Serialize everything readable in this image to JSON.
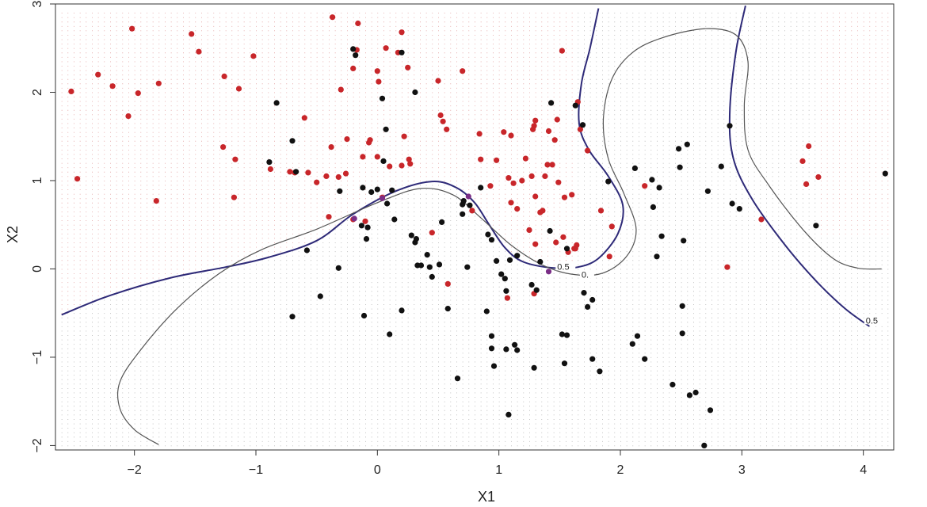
{
  "chart_data": {
    "type": "scatter",
    "title": "",
    "xlabel": "X1",
    "ylabel": "X2",
    "xlim": [
      -2.65,
      4.25
    ],
    "ylim": [
      -2.05,
      3.0
    ],
    "x_ticks": [
      -2,
      -1,
      0,
      1,
      2,
      3,
      4
    ],
    "y_ticks": [
      -2,
      -1,
      0,
      1,
      2,
      3
    ],
    "x_tick_labels": [
      "−2",
      "−1",
      "0",
      "1",
      "2",
      "3",
      "4"
    ],
    "y_tick_labels": [
      "−2",
      "−1",
      "0",
      "1",
      "2",
      "3"
    ],
    "grid": {
      "x_range": [
        -2.6,
        4.2
      ],
      "x_step": 0.05,
      "y_range": [
        -2.0,
        2.9
      ],
      "y_step": 0.05,
      "color": "#b4b4b4",
      "red_color": "#e3a2a2"
    },
    "colors": {
      "red": "#c8262a",
      "black": "#111111",
      "bayes_boundary": "#2e2a78",
      "knn_boundary": "#555555"
    },
    "series": [
      {
        "color": "#c8262a",
        "points": [
          [
            -2.52,
            2.01
          ],
          [
            -2.47,
            1.02
          ],
          [
            -2.3,
            2.2
          ],
          [
            -2.18,
            2.07
          ],
          [
            -2.05,
            1.73
          ],
          [
            -2.02,
            2.72
          ],
          [
            -1.97,
            1.99
          ],
          [
            -1.8,
            2.1
          ],
          [
            -1.82,
            0.77
          ],
          [
            -1.53,
            2.66
          ],
          [
            -1.47,
            2.46
          ],
          [
            -1.26,
            2.18
          ],
          [
            -1.27,
            1.38
          ],
          [
            -1.18,
            0.81
          ],
          [
            -1.17,
            1.24
          ],
          [
            -1.14,
            2.04
          ],
          [
            -1.02,
            2.41
          ],
          [
            -0.88,
            1.13
          ],
          [
            -0.72,
            1.1
          ],
          [
            -0.68,
            1.09
          ],
          [
            -0.6,
            1.71
          ],
          [
            -0.57,
            1.09
          ],
          [
            -0.5,
            0.98
          ],
          [
            -0.42,
            1.05
          ],
          [
            -0.4,
            0.59
          ],
          [
            -0.37,
            2.85
          ],
          [
            -0.38,
            1.38
          ],
          [
            -0.32,
            1.04
          ],
          [
            -0.3,
            2.03
          ],
          [
            -0.25,
            1.47
          ],
          [
            -0.26,
            1.08
          ],
          [
            -0.2,
            2.27
          ],
          [
            -0.2,
            0.56
          ],
          [
            -0.17,
            2.48
          ],
          [
            -0.16,
            2.78
          ],
          [
            -0.12,
            1.27
          ],
          [
            -0.1,
            0.54
          ],
          [
            -0.07,
            1.43
          ],
          [
            -0.06,
            1.46
          ],
          [
            0.0,
            2.24
          ],
          [
            0.01,
            2.12
          ],
          [
            0.0,
            1.27
          ],
          [
            0.04,
            0.81
          ],
          [
            0.07,
            2.5
          ],
          [
            0.1,
            1.16
          ],
          [
            0.17,
            2.45
          ],
          [
            0.2,
            1.17
          ],
          [
            0.2,
            2.68
          ],
          [
            0.22,
            1.5
          ],
          [
            0.25,
            2.28
          ],
          [
            0.26,
            1.24
          ],
          [
            0.27,
            1.19
          ],
          [
            0.45,
            0.41
          ],
          [
            0.5,
            2.13
          ],
          [
            0.52,
            1.74
          ],
          [
            0.54,
            1.67
          ],
          [
            0.57,
            1.58
          ],
          [
            0.58,
            -0.17
          ],
          [
            0.7,
            2.24
          ],
          [
            0.78,
            0.66
          ],
          [
            0.84,
            1.53
          ],
          [
            0.85,
            1.24
          ],
          [
            0.93,
            0.94
          ],
          [
            0.98,
            1.23
          ],
          [
            1.04,
            1.55
          ],
          [
            1.08,
            1.03
          ],
          [
            1.1,
            1.51
          ],
          [
            1.1,
            0.75
          ],
          [
            1.12,
            0.97
          ],
          [
            1.15,
            0.68
          ],
          [
            1.19,
            1.0
          ],
          [
            1.22,
            1.25
          ],
          [
            1.25,
            0.44
          ],
          [
            1.27,
            1.05
          ],
          [
            1.28,
            1.58
          ],
          [
            1.29,
            1.62
          ],
          [
            1.3,
            1.68
          ],
          [
            1.3,
            0.82
          ],
          [
            1.3,
            0.28
          ],
          [
            1.34,
            0.64
          ],
          [
            1.36,
            0.66
          ],
          [
            1.38,
            1.05
          ],
          [
            1.4,
            1.18
          ],
          [
            1.41,
            1.56
          ],
          [
            1.44,
            1.18
          ],
          [
            1.46,
            1.46
          ],
          [
            1.47,
            0.3
          ],
          [
            1.48,
            1.69
          ],
          [
            1.49,
            0.98
          ],
          [
            1.52,
            2.47
          ],
          [
            1.53,
            0.36
          ],
          [
            1.54,
            0.81
          ],
          [
            1.57,
            0.19
          ],
          [
            1.6,
            0.84
          ],
          [
            1.62,
            0.23
          ],
          [
            1.63,
            0.23
          ],
          [
            1.65,
            1.89
          ],
          [
            1.67,
            1.58
          ],
          [
            1.73,
            1.34
          ],
          [
            1.84,
            0.66
          ],
          [
            1.91,
            0.14
          ],
          [
            1.93,
            0.48
          ],
          [
            2.2,
            0.94
          ],
          [
            2.88,
            0.02
          ],
          [
            3.16,
            0.56
          ],
          [
            3.5,
            1.22
          ],
          [
            3.53,
            0.96
          ],
          [
            3.55,
            1.39
          ],
          [
            3.63,
            1.04
          ],
          [
            1.07,
            -0.33
          ],
          [
            1.29,
            -0.28
          ],
          [
            1.64,
            0.27
          ]
        ]
      },
      {
        "color": "#111111",
        "points": [
          [
            -0.89,
            1.21
          ],
          [
            -0.83,
            1.88
          ],
          [
            -0.7,
            1.45
          ],
          [
            -0.67,
            1.1
          ],
          [
            -0.7,
            -0.54
          ],
          [
            -0.58,
            0.21
          ],
          [
            -0.47,
            -0.31
          ],
          [
            -0.32,
            0.01
          ],
          [
            -0.31,
            0.88
          ],
          [
            -0.2,
            2.49
          ],
          [
            -0.18,
            2.42
          ],
          [
            -0.13,
            0.49
          ],
          [
            -0.12,
            0.92
          ],
          [
            -0.11,
            -0.53
          ],
          [
            -0.09,
            0.34
          ],
          [
            -0.08,
            0.47
          ],
          [
            -0.05,
            0.87
          ],
          [
            0.0,
            0.9
          ],
          [
            0.04,
            1.93
          ],
          [
            0.07,
            1.58
          ],
          [
            0.08,
            0.74
          ],
          [
            0.1,
            -0.74
          ],
          [
            0.12,
            0.89
          ],
          [
            0.14,
            0.56
          ],
          [
            0.2,
            -0.47
          ],
          [
            0.2,
            2.45
          ],
          [
            0.28,
            0.38
          ],
          [
            0.31,
            2.0
          ],
          [
            0.31,
            0.3
          ],
          [
            0.32,
            0.34
          ],
          [
            0.33,
            0.04
          ],
          [
            0.36,
            0.04
          ],
          [
            0.41,
            0.16
          ],
          [
            0.43,
            0.02
          ],
          [
            0.45,
            -0.09
          ],
          [
            0.51,
            0.05
          ],
          [
            0.53,
            0.53
          ],
          [
            0.58,
            -0.45
          ],
          [
            0.66,
            -1.24
          ],
          [
            0.7,
            0.62
          ],
          [
            0.7,
            0.73
          ],
          [
            0.71,
            0.77
          ],
          [
            0.74,
            0.02
          ],
          [
            0.76,
            0.72
          ],
          [
            0.85,
            0.92
          ],
          [
            0.9,
            -0.48
          ],
          [
            0.91,
            0.39
          ],
          [
            0.94,
            0.33
          ],
          [
            0.94,
            -0.76
          ],
          [
            0.94,
            -0.9
          ],
          [
            0.96,
            -1.1
          ],
          [
            0.98,
            0.09
          ],
          [
            1.02,
            -0.06
          ],
          [
            1.05,
            -0.11
          ],
          [
            1.06,
            -0.25
          ],
          [
            1.06,
            -0.91
          ],
          [
            1.08,
            -1.65
          ],
          [
            1.09,
            0.1
          ],
          [
            1.13,
            -0.86
          ],
          [
            1.15,
            -0.92
          ],
          [
            1.15,
            0.15
          ],
          [
            1.27,
            -0.18
          ],
          [
            1.29,
            -1.12
          ],
          [
            1.31,
            -0.24
          ],
          [
            1.34,
            0.08
          ],
          [
            1.42,
            0.43
          ],
          [
            1.43,
            1.88
          ],
          [
            1.52,
            -0.74
          ],
          [
            1.54,
            -1.07
          ],
          [
            1.56,
            -0.75
          ],
          [
            1.56,
            0.23
          ],
          [
            1.63,
            1.85
          ],
          [
            1.69,
            1.63
          ],
          [
            1.7,
            -0.27
          ],
          [
            1.73,
            -0.43
          ],
          [
            1.77,
            -0.35
          ],
          [
            1.77,
            -1.02
          ],
          [
            1.83,
            -1.16
          ],
          [
            1.9,
            0.99
          ],
          [
            2.1,
            -0.85
          ],
          [
            2.12,
            1.14
          ],
          [
            2.14,
            -0.76
          ],
          [
            2.2,
            -1.02
          ],
          [
            2.26,
            1.01
          ],
          [
            2.27,
            0.7
          ],
          [
            2.3,
            0.14
          ],
          [
            2.32,
            0.92
          ],
          [
            2.34,
            0.37
          ],
          [
            2.43,
            -1.31
          ],
          [
            2.48,
            1.36
          ],
          [
            2.49,
            1.15
          ],
          [
            2.51,
            -0.42
          ],
          [
            2.51,
            -0.73
          ],
          [
            2.52,
            0.32
          ],
          [
            2.55,
            1.41
          ],
          [
            2.57,
            -1.43
          ],
          [
            2.62,
            -1.4
          ],
          [
            2.69,
            -2.0
          ],
          [
            2.72,
            0.88
          ],
          [
            2.74,
            -1.6
          ],
          [
            2.83,
            1.16
          ],
          [
            2.9,
            1.62
          ],
          [
            2.92,
            0.74
          ],
          [
            2.98,
            0.68
          ],
          [
            3.61,
            0.49
          ],
          [
            4.18,
            1.08
          ],
          [
            0.05,
            1.22
          ]
        ]
      },
      {
        "color": "#7a2e86",
        "points": [
          [
            0.75,
            0.82
          ],
          [
            -0.19,
            0.57
          ],
          [
            1.41,
            -0.03
          ],
          [
            0.04,
            0.8
          ]
        ]
      }
    ],
    "decision_boundaries": [
      {
        "label": "0.5",
        "color": "#2e2a78",
        "segments": [
          [
            [
              -2.6,
              -0.52
            ],
            [
              -2.2,
              -0.3
            ],
            [
              -1.7,
              -0.1
            ],
            [
              -1.25,
              0.02
            ],
            [
              -0.9,
              0.13
            ],
            [
              -0.5,
              0.32
            ],
            [
              -0.2,
              0.62
            ],
            [
              0.15,
              0.88
            ],
            [
              0.45,
              0.99
            ],
            [
              0.65,
              0.92
            ],
            [
              0.8,
              0.75
            ],
            [
              0.92,
              0.5
            ],
            [
              1.05,
              0.24
            ],
            [
              1.2,
              0.08
            ],
            [
              1.45,
              0.01
            ],
            [
              1.65,
              0.02
            ],
            [
              1.82,
              0.12
            ],
            [
              1.98,
              0.4
            ],
            [
              2.02,
              0.72
            ],
            [
              1.9,
              1.05
            ],
            [
              1.74,
              1.35
            ],
            [
              1.66,
              1.65
            ],
            [
              1.68,
              2.1
            ],
            [
              1.75,
              2.5
            ],
            [
              1.82,
              2.95
            ]
          ],
          [
            [
              3.03,
              2.98
            ],
            [
              2.95,
              2.45
            ],
            [
              2.9,
              1.75
            ],
            [
              2.93,
              1.25
            ],
            [
              3.08,
              0.8
            ],
            [
              3.35,
              0.28
            ],
            [
              3.62,
              -0.15
            ],
            [
              3.85,
              -0.45
            ],
            [
              4.05,
              -0.65
            ]
          ]
        ]
      },
      {
        "label": "0",
        "color": "#555555",
        "segments": [
          [
            [
              -1.8,
              -1.99
            ],
            [
              -2.0,
              -1.82
            ],
            [
              -2.12,
              -1.58
            ],
            [
              -2.12,
              -1.28
            ],
            [
              -1.95,
              -0.92
            ],
            [
              -1.65,
              -0.45
            ],
            [
              -1.3,
              -0.05
            ],
            [
              -0.95,
              0.22
            ],
            [
              -0.5,
              0.45
            ],
            [
              0.0,
              0.75
            ],
            [
              0.35,
              0.91
            ],
            [
              0.62,
              0.84
            ],
            [
              0.85,
              0.58
            ],
            [
              1.1,
              0.27
            ],
            [
              1.35,
              0.05
            ],
            [
              1.6,
              -0.06
            ],
            [
              1.85,
              -0.05
            ],
            [
              2.05,
              0.14
            ],
            [
              2.13,
              0.45
            ],
            [
              2.03,
              0.85
            ],
            [
              1.9,
              1.25
            ],
            [
              1.86,
              1.7
            ],
            [
              1.93,
              2.15
            ],
            [
              2.1,
              2.45
            ],
            [
              2.35,
              2.62
            ],
            [
              2.7,
              2.72
            ],
            [
              2.95,
              2.65
            ],
            [
              3.05,
              2.35
            ],
            [
              3.02,
              1.85
            ],
            [
              3.05,
              1.35
            ],
            [
              3.22,
              0.95
            ],
            [
              3.5,
              0.45
            ],
            [
              3.75,
              0.12
            ],
            [
              3.95,
              0.01
            ],
            [
              4.15,
              0.0
            ]
          ]
        ]
      }
    ],
    "contour_labels": [
      {
        "text": "0.5",
        "x": 1.48,
        "y": 0.01
      },
      {
        "text": "0.",
        "x": 1.68,
        "y": -0.08
      },
      {
        "text": "0.5",
        "x": 4.02,
        "y": -0.6
      }
    ]
  }
}
